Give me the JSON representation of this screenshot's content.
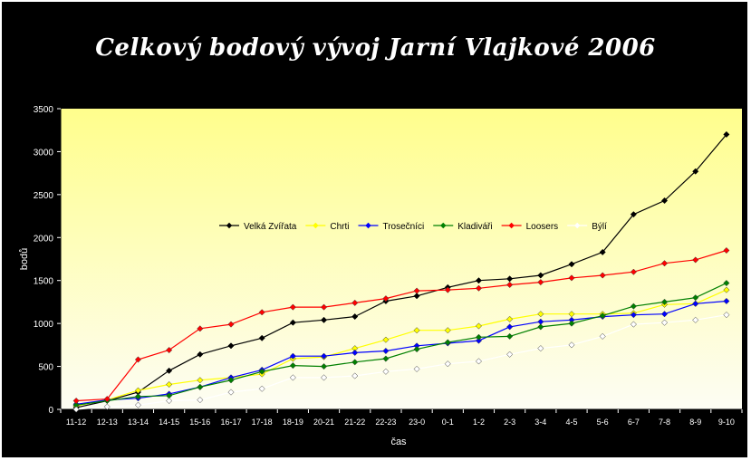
{
  "chart_data": {
    "type": "line",
    "title": "Celkový bodový vývoj Jarní Vlajkové 2006",
    "xlabel": "čas",
    "ylabel": "bodů",
    "ylim": [
      0,
      3500
    ],
    "yticks": [
      0,
      500,
      1000,
      1500,
      2000,
      2500,
      3000,
      3500
    ],
    "grid": false,
    "legend_position": "inside-center",
    "categories": [
      "11-12",
      "12-13",
      "13-14",
      "14-15",
      "15-16",
      "16-17",
      "17-18",
      "18-19",
      "20-21",
      "21-22",
      "22-23",
      "23-0",
      "0-1",
      "1-2",
      "2-3",
      "3-4",
      "4-5",
      "5-6",
      "6-7",
      "7-8",
      "8-9",
      "9-10"
    ],
    "series": [
      {
        "name": "Velká Zvířata",
        "color": "#000000",
        "values": [
          20,
          100,
          200,
          450,
          640,
          740,
          830,
          1010,
          1040,
          1080,
          1260,
          1320,
          1420,
          1500,
          1520,
          1560,
          1690,
          1830,
          2270,
          2430,
          2770,
          3200
        ]
      },
      {
        "name": "Chrti",
        "color": "#ffff00",
        "values": [
          40,
          110,
          220,
          290,
          340,
          370,
          410,
          590,
          610,
          710,
          810,
          920,
          920,
          970,
          1050,
          1110,
          1110,
          1110,
          1120,
          1220,
          1230,
          1390
        ]
      },
      {
        "name": "Trosečníci",
        "color": "#0000ff",
        "values": [
          60,
          110,
          130,
          180,
          260,
          370,
          460,
          620,
          620,
          660,
          680,
          740,
          770,
          800,
          960,
          1020,
          1040,
          1080,
          1100,
          1110,
          1230,
          1260
        ]
      },
      {
        "name": "Kladiváři",
        "color": "#008000",
        "values": [
          50,
          100,
          150,
          160,
          260,
          340,
          440,
          510,
          500,
          550,
          590,
          700,
          780,
          840,
          850,
          960,
          1000,
          1090,
          1200,
          1250,
          1300,
          1470
        ]
      },
      {
        "name": "Loosers",
        "color": "#ff0000",
        "values": [
          100,
          120,
          580,
          690,
          940,
          990,
          1130,
          1190,
          1190,
          1240,
          1290,
          1380,
          1390,
          1410,
          1450,
          1480,
          1530,
          1560,
          1600,
          1700,
          1740,
          1850
        ]
      },
      {
        "name": "Býlí",
        "color": "#ffffff",
        "values": [
          0,
          30,
          50,
          100,
          110,
          200,
          240,
          370,
          370,
          390,
          440,
          470,
          530,
          560,
          640,
          710,
          750,
          850,
          990,
          1010,
          1040,
          1100
        ]
      }
    ]
  }
}
